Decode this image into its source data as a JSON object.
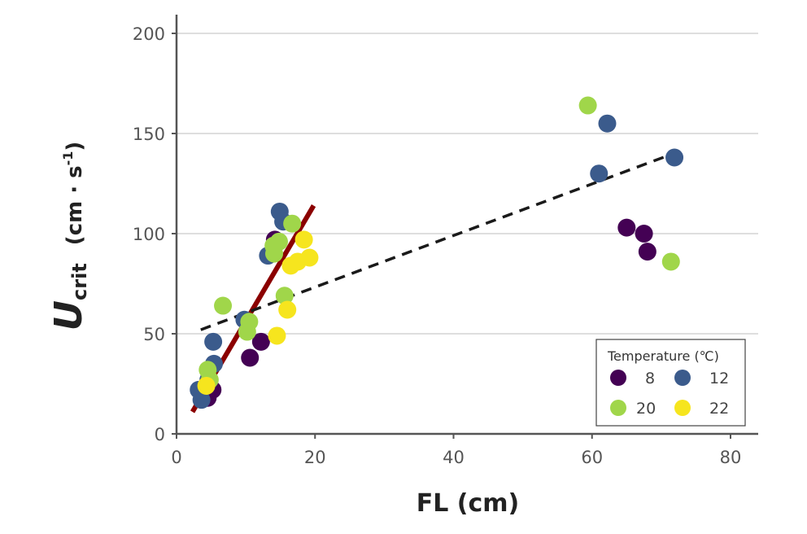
{
  "chart_data": {
    "type": "scatter",
    "title": "",
    "xlabel": "FL (cm)",
    "ylabel": {
      "main": "U",
      "subscript": "crit",
      "unit_prefix": "(cm · s",
      "unit_superscript": "-1",
      "unit_suffix": ")"
    },
    "xlim": [
      0,
      84
    ],
    "ylim": [
      0,
      200
    ],
    "xticks": [
      0,
      20,
      40,
      60,
      80
    ],
    "yticks": [
      0,
      50,
      100,
      150,
      200
    ],
    "grid": "horizontal",
    "legend": {
      "title": "Temperature (℃)",
      "placement": "bottom-right",
      "entries": [
        {
          "label": "8",
          "color": "#440154"
        },
        {
          "label": "12",
          "color": "#3b5b8c"
        },
        {
          "label": "20",
          "color": "#a0d64a"
        },
        {
          "label": "22",
          "color": "#f6e51e"
        }
      ]
    },
    "series": [
      {
        "name": "8",
        "color": "#440154",
        "points": [
          [
            3.8,
            20
          ],
          [
            4.5,
            18
          ],
          [
            5.2,
            22
          ],
          [
            10.6,
            38
          ],
          [
            12.2,
            46
          ],
          [
            14.2,
            97
          ],
          [
            65,
            103
          ],
          [
            67.5,
            100
          ],
          [
            68,
            91
          ]
        ]
      },
      {
        "name": "12",
        "color": "#3b5b8c",
        "points": [
          [
            3.6,
            17
          ],
          [
            3.2,
            22
          ],
          [
            4.6,
            27
          ],
          [
            5.4,
            35
          ],
          [
            5.3,
            46
          ],
          [
            9.8,
            57
          ],
          [
            13.2,
            89
          ],
          [
            14.9,
            111
          ],
          [
            15.4,
            106
          ],
          [
            61,
            130
          ],
          [
            62.2,
            155
          ],
          [
            71.9,
            138
          ]
        ]
      },
      {
        "name": "20",
        "color": "#a0d64a",
        "points": [
          [
            4.5,
            32
          ],
          [
            4.8,
            27
          ],
          [
            6.7,
            64
          ],
          [
            10.2,
            51
          ],
          [
            10.5,
            56
          ],
          [
            14.0,
            94
          ],
          [
            14.8,
            96
          ],
          [
            14.1,
            90
          ],
          [
            15.6,
            69
          ],
          [
            16.7,
            105
          ],
          [
            59.4,
            164
          ],
          [
            71.4,
            86
          ]
        ]
      },
      {
        "name": "22",
        "color": "#f6e51e",
        "points": [
          [
            4.3,
            24
          ],
          [
            14.5,
            49
          ],
          [
            16.0,
            62
          ],
          [
            16.5,
            84
          ],
          [
            17.5,
            86
          ],
          [
            18.4,
            97
          ],
          [
            19.2,
            88
          ]
        ]
      }
    ],
    "fits": [
      {
        "style": "solid",
        "color": "#8b0000",
        "x": [
          2.3,
          19.8
        ],
        "y": [
          11,
          114
        ]
      },
      {
        "style": "dashed",
        "color": "#1a1a1a",
        "x": [
          3.5,
          71
        ],
        "y": [
          52,
          139
        ]
      }
    ]
  }
}
